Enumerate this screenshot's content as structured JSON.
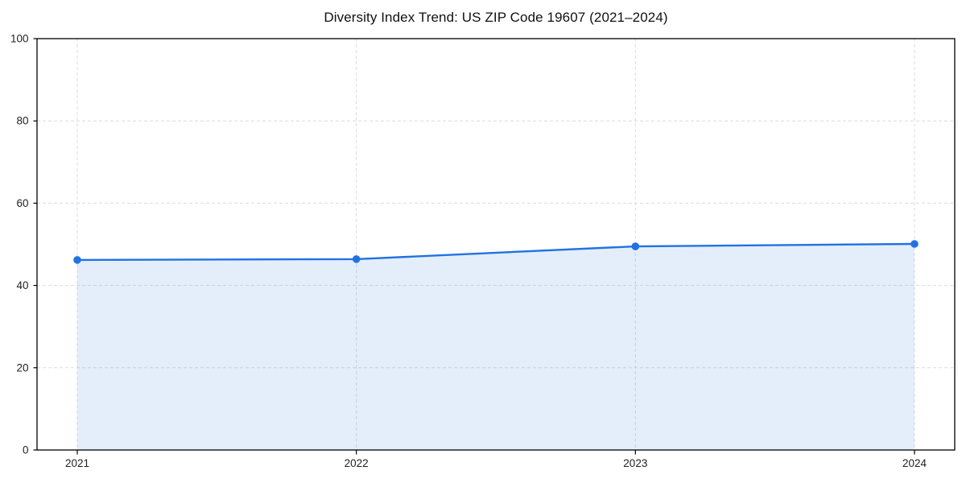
{
  "chart_data": {
    "type": "area",
    "title": "Diversity Index Trend: US ZIP Code 19607 (2021–2024)",
    "categories": [
      "2021",
      "2022",
      "2023",
      "2024"
    ],
    "series": [
      {
        "name": "Diversity Index",
        "values": [
          46.2,
          46.4,
          49.5,
          50.1
        ]
      }
    ],
    "xlabel": "",
    "ylabel": "",
    "ylim": [
      0,
      100
    ],
    "yticks": [
      0,
      20,
      40,
      60,
      80,
      100
    ],
    "grid": true,
    "grid_style": "dashed",
    "legend": "none",
    "line_color": "#2172e2",
    "marker_color": "#2172e2",
    "fill_color": "#2172e2",
    "fill_opacity": 0.12,
    "gridline_color": "#dcdcdc",
    "axis_color": "#000000",
    "tick_label_color": "#222222",
    "title_color": "#111111"
  }
}
